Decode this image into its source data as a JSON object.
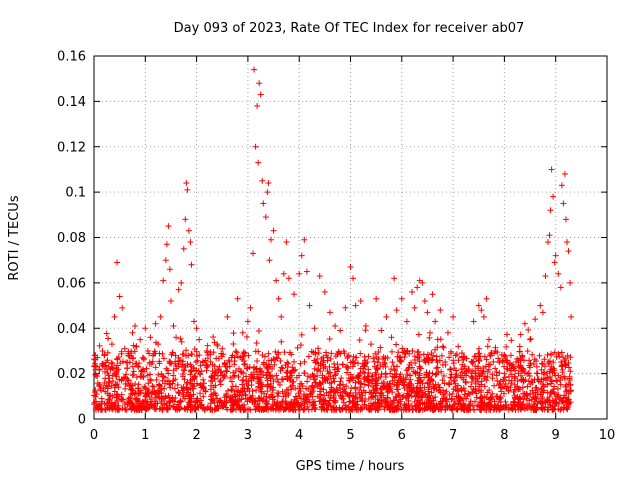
{
  "chart_data": {
    "type": "scatter",
    "title": "Day 093 of 2023, Rate Of TEC Index for receiver ab07",
    "xlabel": "GPS time / hours",
    "ylabel": "ROTI / TECUs",
    "xlim": [
      0,
      10
    ],
    "ylim": [
      0,
      0.16
    ],
    "x_ticks": [
      "0",
      "1",
      "2",
      "3",
      "4",
      "5",
      "6",
      "7",
      "8",
      "9",
      "10"
    ],
    "y_ticks": [
      "0",
      "0.02",
      "0.04",
      "0.06",
      "0.08",
      "0.1",
      "0.12",
      "0.14",
      "0.16"
    ],
    "grid": true,
    "marker": "+",
    "marker_color": "#ff0000",
    "series": [
      {
        "name": "ROTI",
        "points": [
          [
            0.05,
            0.011
          ],
          [
            0.1,
            0.015
          ],
          [
            0.15,
            0.009
          ],
          [
            0.2,
            0.028
          ],
          [
            0.25,
            0.022
          ],
          [
            0.3,
            0.018
          ],
          [
            0.35,
            0.033
          ],
          [
            0.4,
            0.045
          ],
          [
            0.45,
            0.069
          ],
          [
            0.5,
            0.054
          ],
          [
            0.55,
            0.049
          ],
          [
            0.6,
            0.031
          ],
          [
            0.7,
            0.025
          ],
          [
            0.75,
            0.038
          ],
          [
            0.8,
            0.041
          ],
          [
            0.9,
            0.035
          ],
          [
            0.95,
            0.027
          ],
          [
            1.0,
            0.04
          ],
          [
            1.05,
            0.03
          ],
          [
            1.1,
            0.036
          ],
          [
            1.15,
            0.028
          ],
          [
            1.2,
            0.042
          ],
          [
            1.25,
            0.033
          ],
          [
            1.3,
            0.045
          ],
          [
            1.35,
            0.061
          ],
          [
            1.4,
            0.07
          ],
          [
            1.42,
            0.077
          ],
          [
            1.45,
            0.085
          ],
          [
            1.48,
            0.066
          ],
          [
            1.5,
            0.052
          ],
          [
            1.55,
            0.041
          ],
          [
            1.6,
            0.036
          ],
          [
            1.65,
            0.057
          ],
          [
            1.7,
            0.06
          ],
          [
            1.75,
            0.075
          ],
          [
            1.78,
            0.088
          ],
          [
            1.8,
            0.104
          ],
          [
            1.82,
            0.101
          ],
          [
            1.85,
            0.083
          ],
          [
            1.88,
            0.078
          ],
          [
            1.9,
            0.068
          ],
          [
            1.95,
            0.043
          ],
          [
            2.0,
            0.04
          ],
          [
            2.05,
            0.035
          ],
          [
            2.1,
            0.021
          ],
          [
            2.2,
            0.03
          ],
          [
            2.3,
            0.019
          ],
          [
            2.4,
            0.033
          ],
          [
            2.5,
            0.031
          ],
          [
            2.55,
            0.024
          ],
          [
            2.6,
            0.045
          ],
          [
            2.7,
            0.028
          ],
          [
            2.8,
            0.053
          ],
          [
            2.9,
            0.038
          ],
          [
            3.0,
            0.043
          ],
          [
            3.05,
            0.049
          ],
          [
            3.1,
            0.073
          ],
          [
            3.12,
            0.154
          ],
          [
            3.15,
            0.12
          ],
          [
            3.18,
            0.138
          ],
          [
            3.2,
            0.113
          ],
          [
            3.22,
            0.148
          ],
          [
            3.25,
            0.143
          ],
          [
            3.28,
            0.105
          ],
          [
            3.3,
            0.095
          ],
          [
            3.35,
            0.089
          ],
          [
            3.38,
            0.1
          ],
          [
            3.4,
            0.104
          ],
          [
            3.42,
            0.07
          ],
          [
            3.45,
            0.079
          ],
          [
            3.5,
            0.083
          ],
          [
            3.55,
            0.061
          ],
          [
            3.6,
            0.053
          ],
          [
            3.65,
            0.045
          ],
          [
            3.7,
            0.064
          ],
          [
            3.75,
            0.078
          ],
          [
            3.8,
            0.062
          ],
          [
            3.9,
            0.055
          ],
          [
            4.0,
            0.064
          ],
          [
            4.05,
            0.072
          ],
          [
            4.1,
            0.079
          ],
          [
            4.15,
            0.065
          ],
          [
            4.2,
            0.05
          ],
          [
            4.3,
            0.04
          ],
          [
            4.4,
            0.063
          ],
          [
            4.5,
            0.056
          ],
          [
            4.6,
            0.047
          ],
          [
            4.7,
            0.041
          ],
          [
            4.8,
            0.039
          ],
          [
            4.9,
            0.049
          ],
          [
            5.0,
            0.067
          ],
          [
            5.05,
            0.062
          ],
          [
            5.1,
            0.05
          ],
          [
            5.2,
            0.052
          ],
          [
            5.3,
            0.041
          ],
          [
            5.4,
            0.033
          ],
          [
            5.5,
            0.053
          ],
          [
            5.6,
            0.039
          ],
          [
            5.7,
            0.045
          ],
          [
            5.8,
            0.036
          ],
          [
            5.85,
            0.062
          ],
          [
            5.9,
            0.048
          ],
          [
            6.0,
            0.053
          ],
          [
            6.05,
            0.03
          ],
          [
            6.1,
            0.043
          ],
          [
            6.2,
            0.056
          ],
          [
            6.25,
            0.049
          ],
          [
            6.3,
            0.058
          ],
          [
            6.35,
            0.061
          ],
          [
            6.4,
            0.06
          ],
          [
            6.45,
            0.052
          ],
          [
            6.5,
            0.047
          ],
          [
            6.55,
            0.038
          ],
          [
            6.6,
            0.055
          ],
          [
            6.65,
            0.043
          ],
          [
            6.7,
            0.035
          ],
          [
            6.75,
            0.048
          ],
          [
            6.8,
            0.032
          ],
          [
            6.9,
            0.038
          ],
          [
            7.0,
            0.045
          ],
          [
            7.05,
            0.028
          ],
          [
            7.1,
            0.032
          ],
          [
            7.2,
            0.026
          ],
          [
            7.3,
            0.022
          ],
          [
            7.4,
            0.043
          ],
          [
            7.5,
            0.05
          ],
          [
            7.55,
            0.048
          ],
          [
            7.6,
            0.045
          ],
          [
            7.65,
            0.053
          ],
          [
            7.7,
            0.035
          ],
          [
            7.8,
            0.029
          ],
          [
            7.9,
            0.025
          ],
          [
            8.0,
            0.02
          ],
          [
            8.1,
            0.024
          ],
          [
            8.2,
            0.018
          ],
          [
            8.3,
            0.032
          ],
          [
            8.4,
            0.042
          ],
          [
            8.5,
            0.035
          ],
          [
            8.6,
            0.044
          ],
          [
            8.7,
            0.05
          ],
          [
            8.75,
            0.047
          ],
          [
            8.8,
            0.063
          ],
          [
            8.85,
            0.078
          ],
          [
            8.88,
            0.081
          ],
          [
            8.9,
            0.092
          ],
          [
            8.92,
            0.11
          ],
          [
            8.95,
            0.098
          ],
          [
            8.98,
            0.069
          ],
          [
            9.0,
            0.072
          ],
          [
            9.05,
            0.064
          ],
          [
            9.1,
            0.058
          ],
          [
            9.12,
            0.103
          ],
          [
            9.15,
            0.095
          ],
          [
            9.18,
            0.108
          ],
          [
            9.2,
            0.088
          ],
          [
            9.22,
            0.078
          ],
          [
            9.25,
            0.074
          ],
          [
            9.28,
            0.06
          ],
          [
            9.3,
            0.045
          ]
        ]
      }
    ],
    "background_band": {
      "description": "dense baseline of low ROTI values",
      "x_range": [
        0,
        9.3
      ],
      "y_min": 0.004,
      "y_typical_max": 0.03
    }
  }
}
